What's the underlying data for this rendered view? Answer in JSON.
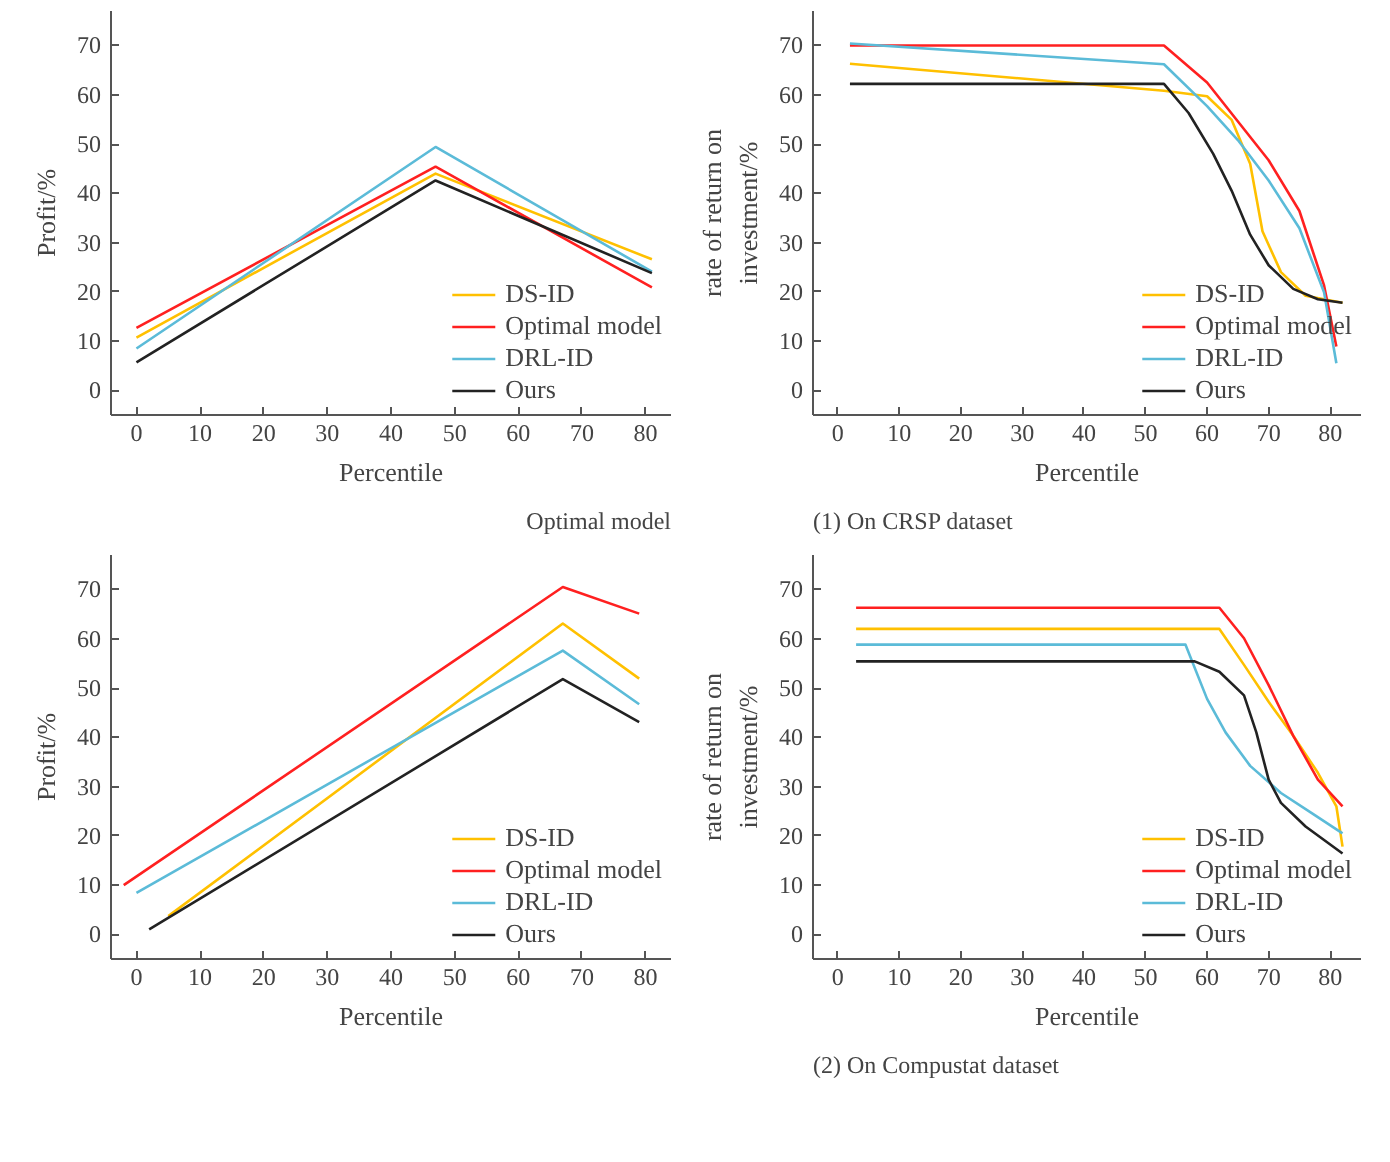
{
  "chart_data": [
    {
      "type": "line",
      "xlabel": "Percentile",
      "ylabel": "Profit/%",
      "xlim": [
        -4,
        84
      ],
      "ylim": [
        -5,
        77
      ],
      "xticks": [
        0,
        10,
        20,
        30,
        40,
        50,
        60,
        70,
        80
      ],
      "yticks": [
        0,
        10,
        20,
        30,
        40,
        50,
        60,
        70
      ],
      "grid": false,
      "legend": "bottom right",
      "annotations": [
        "Optimal model"
      ],
      "series": [
        {
          "name": "DS-ID",
          "color": "#ffc000",
          "x": [
            0,
            47,
            81
          ],
          "values": [
            10.7,
            44.0,
            26.6
          ]
        },
        {
          "name": "Optimal model",
          "color": "#ff2020",
          "x": [
            0,
            47,
            81
          ],
          "values": [
            12.7,
            45.4,
            20.9
          ]
        },
        {
          "name": "DRL-ID",
          "color": "#5bbbd8",
          "x": [
            0,
            47,
            81
          ],
          "values": [
            8.5,
            49.4,
            24.1
          ]
        },
        {
          "name": "Ours",
          "color": "#222222",
          "x": [
            0,
            47,
            81
          ],
          "values": [
            5.7,
            42.6,
            23.8
          ]
        }
      ]
    },
    {
      "type": "line",
      "xlabel": "Percentile",
      "ylabel": "rate of return on\ninvestment/%",
      "xlim": [
        -4,
        85
      ],
      "ylim": [
        -5,
        77
      ],
      "xticks": [
        0,
        10,
        20,
        30,
        40,
        50,
        60,
        70,
        80
      ],
      "yticks": [
        0,
        10,
        20,
        30,
        40,
        50,
        60,
        70
      ],
      "grid": false,
      "legend": "bottom right",
      "annotations": [
        "(1) On CRSP dataset"
      ],
      "series": [
        {
          "name": "DS-ID",
          "color": "#ffc000",
          "x": [
            2,
            53,
            60,
            64,
            67,
            69,
            72,
            76,
            82
          ],
          "values": [
            66.3,
            60.8,
            59.7,
            54.9,
            46.0,
            32.3,
            24.0,
            19.2,
            17.8
          ]
        },
        {
          "name": "Optimal model",
          "color": "#ff2020",
          "x": [
            2,
            53,
            60,
            70,
            75,
            79,
            81
          ],
          "values": [
            70,
            70,
            62.5,
            46.7,
            36.4,
            21.3,
            8.9
          ]
        },
        {
          "name": "DRL-ID",
          "color": "#5bbbd8",
          "x": [
            2,
            53,
            60,
            65,
            70,
            75,
            79,
            81
          ],
          "values": [
            70.4,
            66.2,
            57.7,
            50.8,
            42.6,
            32.9,
            19.9,
            5.5
          ]
        },
        {
          "name": "Ours",
          "color": "#222222",
          "x": [
            2,
            53,
            57,
            61,
            64,
            67,
            70,
            74,
            78,
            82
          ],
          "values": [
            62.2,
            62.2,
            56.3,
            48.0,
            40.5,
            31.6,
            25.4,
            20.6,
            18.5,
            17.8
          ]
        }
      ]
    },
    {
      "type": "line",
      "xlabel": "Percentile",
      "ylabel": "Profit/%",
      "xlim": [
        -4,
        84
      ],
      "ylim": [
        -5,
        77
      ],
      "xticks": [
        0,
        10,
        20,
        30,
        40,
        50,
        60,
        70,
        80
      ],
      "yticks": [
        0,
        10,
        20,
        30,
        40,
        50,
        60,
        70
      ],
      "grid": false,
      "legend": "bottom right",
      "series": [
        {
          "name": "DS-ID",
          "color": "#ffc000",
          "x": [
            5,
            67,
            79
          ],
          "values": [
            3.7,
            63.1,
            51.9
          ]
        },
        {
          "name": "Optimal model",
          "color": "#ff2020",
          "x": [
            -2,
            67,
            79
          ],
          "values": [
            10,
            70.5,
            65.1
          ]
        },
        {
          "name": "DRL-ID",
          "color": "#5bbbd8",
          "x": [
            0,
            67,
            79
          ],
          "values": [
            8.4,
            57.6,
            46.7
          ]
        },
        {
          "name": "Ours",
          "color": "#222222",
          "x": [
            2,
            67,
            79
          ],
          "values": [
            1.0,
            51.8,
            43.1
          ]
        }
      ]
    },
    {
      "type": "line",
      "xlabel": "Percentile",
      "ylabel": "rate of return on\ninvestment/%",
      "xlim": [
        -4,
        85
      ],
      "ylim": [
        -5,
        77
      ],
      "xticks": [
        0,
        10,
        20,
        30,
        40,
        50,
        60,
        70,
        80
      ],
      "yticks": [
        0,
        10,
        20,
        30,
        40,
        50,
        60,
        70
      ],
      "grid": false,
      "legend": "bottom right",
      "annotations": [
        "(2) On Compustat dataset"
      ],
      "series": [
        {
          "name": "DS-ID",
          "color": "#ffc000",
          "x": [
            3,
            62,
            66,
            70,
            74,
            78,
            81,
            82
          ],
          "values": [
            62.0,
            62.0,
            54.7,
            47.2,
            40.3,
            32.8,
            26.0,
            17.8
          ]
        },
        {
          "name": "Optimal model",
          "color": "#ff2020",
          "x": [
            3,
            62,
            66,
            70,
            74,
            78,
            82
          ],
          "values": [
            66.3,
            66.3,
            60.1,
            50.6,
            40.3,
            31.4,
            26.0
          ]
        },
        {
          "name": "DRL-ID",
          "color": "#5bbbd8",
          "x": [
            3,
            56.5,
            60,
            63,
            67,
            72,
            77,
            82
          ],
          "values": [
            58.8,
            58.8,
            47.8,
            41.0,
            34.2,
            28.7,
            24.6,
            20.5
          ]
        },
        {
          "name": "Ours",
          "color": "#222222",
          "x": [
            3,
            58,
            62,
            66,
            68,
            70,
            72,
            76,
            82
          ],
          "values": [
            55.4,
            55.4,
            53.3,
            48.5,
            41.0,
            31.4,
            26.7,
            21.9,
            16.4
          ]
        }
      ]
    }
  ]
}
